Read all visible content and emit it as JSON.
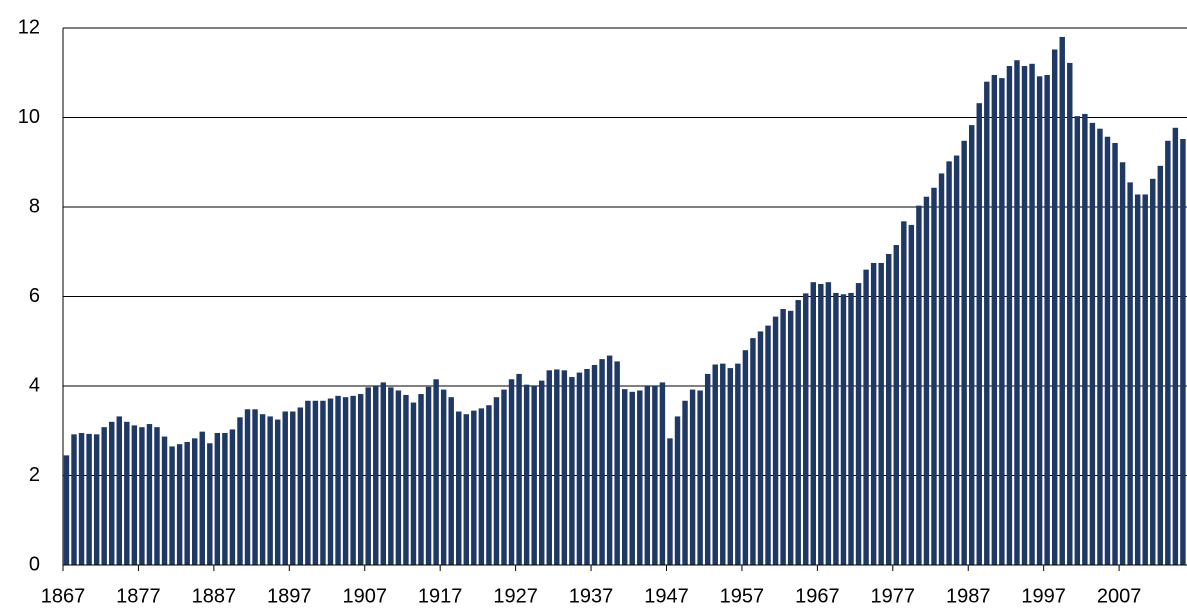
{
  "chart_data": {
    "type": "bar",
    "color": "#1f3864",
    "grid": true,
    "x": [
      1867,
      1868,
      1869,
      1870,
      1871,
      1872,
      1873,
      1874,
      1875,
      1876,
      1877,
      1878,
      1879,
      1880,
      1881,
      1882,
      1883,
      1884,
      1885,
      1886,
      1887,
      1888,
      1889,
      1890,
      1891,
      1892,
      1893,
      1894,
      1895,
      1896,
      1897,
      1898,
      1899,
      1900,
      1901,
      1902,
      1903,
      1904,
      1905,
      1906,
      1907,
      1908,
      1909,
      1910,
      1911,
      1912,
      1913,
      1914,
      1915,
      1916,
      1917,
      1918,
      1919,
      1920,
      1921,
      1922,
      1923,
      1924,
      1925,
      1926,
      1927,
      1928,
      1929,
      1930,
      1931,
      1932,
      1933,
      1934,
      1935,
      1936,
      1937,
      1938,
      1939,
      1940,
      1941,
      1942,
      1943,
      1944,
      1945,
      1946,
      1947,
      1948,
      1949,
      1950,
      1951,
      1952,
      1953,
      1954,
      1955,
      1956,
      1957,
      1958,
      1959,
      1960,
      1961,
      1962,
      1963,
      1964,
      1965,
      1966,
      1967,
      1968,
      1969,
      1970,
      1971,
      1972,
      1973,
      1974,
      1975,
      1976,
      1977,
      1978,
      1979,
      1980,
      1981,
      1982,
      1983,
      1984,
      1985,
      1986,
      1987,
      1988,
      1989,
      1990,
      1991,
      1992,
      1993,
      1994,
      1995,
      1996,
      1997,
      1998,
      1999,
      2000,
      2001,
      2002,
      2003,
      2004,
      2005,
      2006,
      2007,
      2008,
      2009,
      2010,
      2011,
      2012,
      2013,
      2014,
      2015
    ],
    "values": [
      2.45,
      2.92,
      2.95,
      2.93,
      2.92,
      3.08,
      3.2,
      3.32,
      3.2,
      3.12,
      3.08,
      3.15,
      3.08,
      2.87,
      2.65,
      2.7,
      2.75,
      2.83,
      2.98,
      2.72,
      2.95,
      2.95,
      3.03,
      3.3,
      3.48,
      3.48,
      3.37,
      3.32,
      3.25,
      3.43,
      3.43,
      3.52,
      3.67,
      3.67,
      3.67,
      3.72,
      3.78,
      3.75,
      3.78,
      3.82,
      3.97,
      4.0,
      4.08,
      3.97,
      3.9,
      3.8,
      3.63,
      3.82,
      3.98,
      4.15,
      3.92,
      3.75,
      3.43,
      3.37,
      3.45,
      3.5,
      3.57,
      3.75,
      3.92,
      4.15,
      4.27,
      4.03,
      4.0,
      4.12,
      4.35,
      4.37,
      4.35,
      4.2,
      4.3,
      4.38,
      4.47,
      4.6,
      4.68,
      4.55,
      3.93,
      3.87,
      3.9,
      4.0,
      4.0,
      4.08,
      2.83,
      3.32,
      3.67,
      3.92,
      3.9,
      4.27,
      4.48,
      4.5,
      4.4,
      4.5,
      4.8,
      5.07,
      5.22,
      5.35,
      5.55,
      5.72,
      5.68,
      5.92,
      6.07,
      6.32,
      6.28,
      6.32,
      6.08,
      6.05,
      6.08,
      6.3,
      6.6,
      6.75,
      6.75,
      6.95,
      7.15,
      7.68,
      7.6,
      8.03,
      8.23,
      8.43,
      8.75,
      9.02,
      9.15,
      9.48,
      9.83,
      10.32,
      10.8,
      10.95,
      10.88,
      11.15,
      11.28,
      11.15,
      11.2,
      10.92,
      10.95,
      11.52,
      11.8,
      11.22,
      10.03,
      10.08,
      9.88,
      9.75,
      9.57,
      9.43,
      9.0,
      8.55,
      8.28,
      8.28,
      8.63,
      8.92,
      9.48,
      9.77,
      9.52
    ],
    "xlim": [
      1867,
      2016
    ],
    "xticks": [
      1867,
      1877,
      1887,
      1897,
      1907,
      1917,
      1927,
      1937,
      1947,
      1957,
      1967,
      1977,
      1987,
      1997,
      2007
    ],
    "ylim": [
      0,
      12
    ],
    "yticks": [
      0,
      2,
      4,
      6,
      8,
      10,
      12
    ]
  }
}
